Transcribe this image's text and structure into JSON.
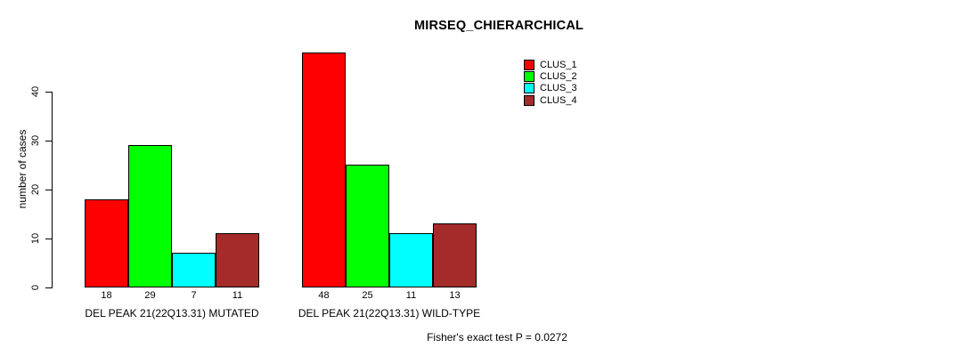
{
  "chart_data": {
    "type": "bar",
    "title": "MIRSEQ_CHIERARCHICAL",
    "ylabel": "number of cases",
    "annotation": "Fisher's exact test P = 0.0272",
    "yticks": [
      0,
      10,
      20,
      30,
      40
    ],
    "ylim": [
      0,
      48
    ],
    "grid": false,
    "legend_position": "top-right",
    "categories": [
      "DEL PEAK 21(22Q13.31) MUTATED",
      "DEL PEAK 21(22Q13.31) WILD-TYPE"
    ],
    "series": [
      {
        "name": "CLUS_1",
        "color": "#FF0000",
        "values": [
          18,
          48
        ]
      },
      {
        "name": "CLUS_2",
        "color": "#00FF00",
        "values": [
          29,
          25
        ]
      },
      {
        "name": "CLUS_3",
        "color": "#00FFFF",
        "values": [
          7,
          11
        ]
      },
      {
        "name": "CLUS_4",
        "color": "#A52A2A",
        "values": [
          11,
          13
        ]
      }
    ],
    "bar_value_labels": [
      [
        18,
        29,
        7,
        11
      ],
      [
        48,
        25,
        11,
        13
      ]
    ]
  }
}
